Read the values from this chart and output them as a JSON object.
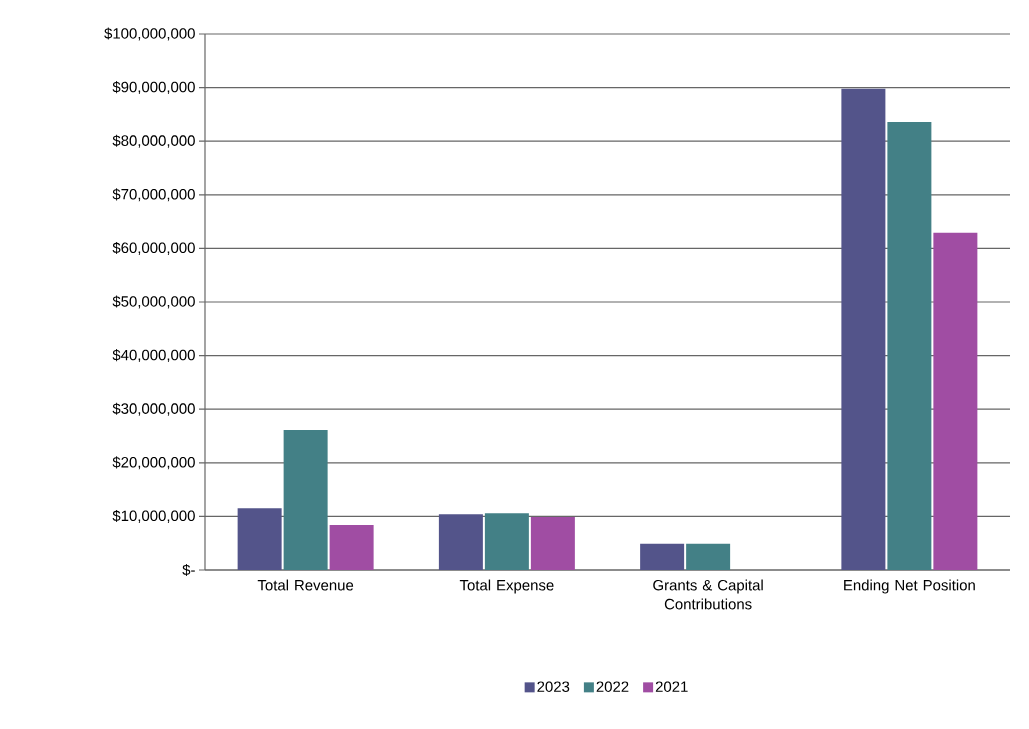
{
  "chart_data": {
    "type": "bar",
    "categories": [
      "Total Revenue",
      "Total Expense",
      "Grants & Capital Contributions",
      "Ending Net Position"
    ],
    "series": [
      {
        "name": "2023",
        "color": "#53548a",
        "values": [
          11500000,
          10400000,
          4900000,
          89800000
        ]
      },
      {
        "name": "2022",
        "color": "#438086",
        "values": [
          26100000,
          10600000,
          4900000,
          83600000
        ]
      },
      {
        "name": "2021",
        "color": "#a04da3",
        "values": [
          8400000,
          9900000,
          null,
          62900000
        ]
      }
    ],
    "ylim": [
      0,
      100000000
    ],
    "yticks": [
      {
        "value": 0,
        "label": "$-"
      },
      {
        "value": 10000000,
        "label": "$10,000,000"
      },
      {
        "value": 20000000,
        "label": "$20,000,000"
      },
      {
        "value": 30000000,
        "label": "$30,000,000"
      },
      {
        "value": 40000000,
        "label": "$40,000,000"
      },
      {
        "value": 50000000,
        "label": "$50,000,000"
      },
      {
        "value": 60000000,
        "label": "$60,000,000"
      },
      {
        "value": 70000000,
        "label": "$70,000,000"
      },
      {
        "value": 80000000,
        "label": "$80,000,000"
      },
      {
        "value": 90000000,
        "label": "$90,000,000"
      },
      {
        "value": 100000000,
        "label": "$100,000,000"
      }
    ],
    "grid": "y",
    "legend": "bottom"
  }
}
